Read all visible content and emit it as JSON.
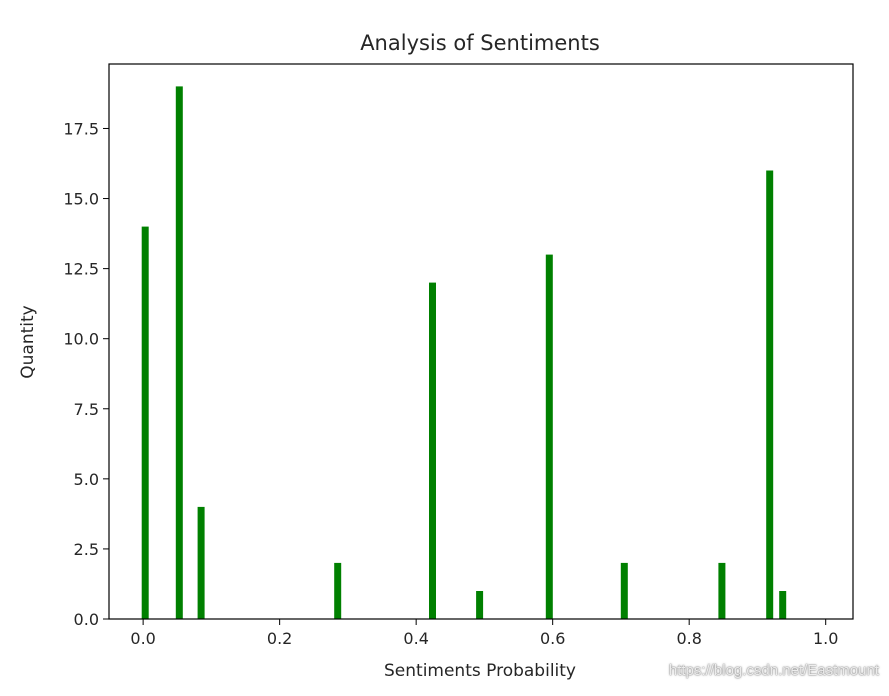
{
  "chart_data": {
    "type": "bar",
    "title": "Analysis of Sentiments",
    "xlabel": "Sentiments Probability",
    "ylabel": "Quantity",
    "xlim": [
      -0.05,
      1.04
    ],
    "ylim": [
      0,
      19.8
    ],
    "x_ticks": [
      0.0,
      0.2,
      0.4,
      0.6,
      0.8,
      1.0
    ],
    "x_tick_labels": [
      "0.0",
      "0.2",
      "0.4",
      "0.6",
      "0.8",
      "1.0"
    ],
    "y_ticks": [
      0.0,
      2.5,
      5.0,
      7.5,
      10.0,
      12.5,
      15.0,
      17.5
    ],
    "y_tick_labels": [
      "0.0",
      "2.5",
      "5.0",
      "7.5",
      "10.0",
      "12.5",
      "15.0",
      "17.5"
    ],
    "bar_color": "#008000",
    "grid": false,
    "points": [
      {
        "x": 0.003,
        "y": 14
      },
      {
        "x": 0.053,
        "y": 19
      },
      {
        "x": 0.085,
        "y": 4
      },
      {
        "x": 0.285,
        "y": 2
      },
      {
        "x": 0.424,
        "y": 12
      },
      {
        "x": 0.493,
        "y": 1
      },
      {
        "x": 0.595,
        "y": 13
      },
      {
        "x": 0.705,
        "y": 2
      },
      {
        "x": 0.848,
        "y": 2
      },
      {
        "x": 0.918,
        "y": 16
      },
      {
        "x": 0.937,
        "y": 1
      }
    ]
  },
  "watermark": "https://blog.csdn.net/Eastmount"
}
